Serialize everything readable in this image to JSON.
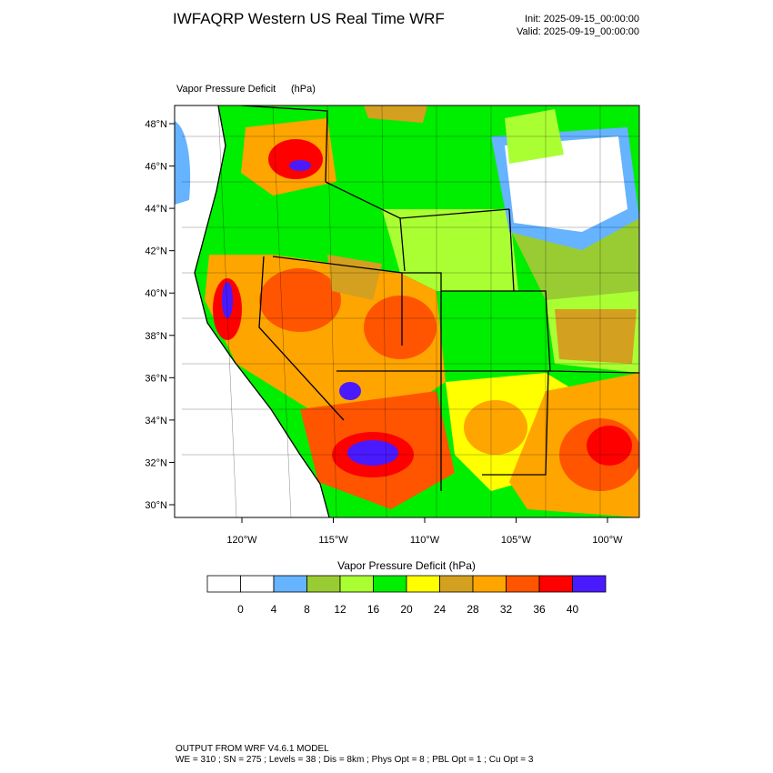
{
  "header": {
    "title": "IWFAQRP Western US Real Time WRF",
    "init": "Init: 2025-09-15_00:00:00",
    "valid": "Valid: 2025-09-19_00:00:00"
  },
  "map": {
    "field": "Vapor Pressure Deficit",
    "units": "(hPa)",
    "lat_labels": [
      "48°N",
      "46°N",
      "44°N",
      "42°N",
      "40°N",
      "38°N",
      "36°N",
      "34°N",
      "32°N",
      "30°N"
    ],
    "lon_labels": [
      "120°W",
      "115°W",
      "110°W",
      "105°W",
      "100°W"
    ]
  },
  "colorbar": {
    "label": "Vapor Pressure Deficit  (hPa)",
    "colors": [
      "#ffffff",
      "#ffffff",
      "#66b3ff",
      "#99cc33",
      "#aaff33",
      "#00ee00",
      "#ffff00",
      "#d4a020",
      "#ffa500",
      "#ff5500",
      "#ff0000",
      "#4a1aff"
    ],
    "ticks": [
      0,
      4,
      8,
      12,
      16,
      20,
      24,
      28,
      32,
      36,
      40
    ]
  },
  "footer": {
    "lines": [
      "OUTPUT FROM WRF V4.6.1 MODEL",
      "WE = 310 ; SN = 275 ; Levels = 38 ; Dis = 8km ; Phys Opt = 8 ; PBL Opt = 1 ; Cu Opt = 3"
    ]
  }
}
